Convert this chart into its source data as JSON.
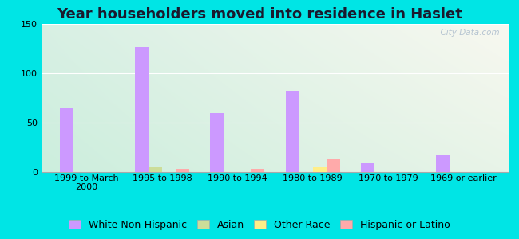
{
  "title": "Year householders moved into residence in Haslet",
  "categories": [
    "1999 to March\n2000",
    "1995 to 1998",
    "1990 to 1994",
    "1980 to 1989",
    "1970 to 1979",
    "1969 or earlier"
  ],
  "series": {
    "White Non-Hispanic": [
      65,
      127,
      60,
      82,
      10,
      17
    ],
    "Asian": [
      0,
      6,
      0,
      0,
      0,
      0
    ],
    "Other Race": [
      0,
      0,
      0,
      5,
      0,
      0
    ],
    "Hispanic or Latino": [
      0,
      3,
      3,
      13,
      0,
      0
    ]
  },
  "colors": {
    "White Non-Hispanic": "#cc99ff",
    "Asian": "#ccdd99",
    "Other Race": "#ffee88",
    "Hispanic or Latino": "#ffaaaa"
  },
  "ylim": [
    0,
    150
  ],
  "yticks": [
    0,
    50,
    100,
    150
  ],
  "bar_width": 0.18,
  "bg_outer": "#00e5e5",
  "bg_corner_tl": "#aaeedd",
  "bg_corner_tr": "#e8f0e8",
  "bg_corner_bl": "#d0f0e0",
  "bg_corner_br": "#f8f8f0",
  "watermark": "  City-Data.com",
  "title_fontsize": 13,
  "tick_fontsize": 8,
  "legend_fontsize": 9
}
